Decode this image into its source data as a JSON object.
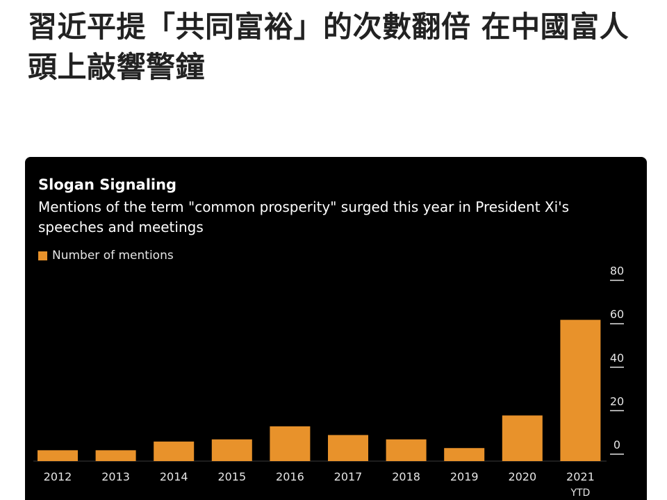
{
  "headline": "習近平提「共同富裕」的次數翻倍 在中國富人頭上敲響警鐘",
  "colors": {
    "page_background": "#ffffff",
    "card_background": "#000000",
    "bar": "#e8922b",
    "axis_text": "#e6e6e6"
  },
  "chart_data": {
    "type": "bar",
    "title": "Slogan Signaling",
    "subtitle": "Mentions of the term \"common prosperity\" surged this year in President Xi's speeches and meetings",
    "categories": [
      "2012",
      "2013",
      "2014",
      "2015",
      "2016",
      "2017",
      "2018",
      "2019",
      "2020",
      "2021"
    ],
    "category_sublabels": [
      "",
      "",
      "",
      "",
      "",
      "",
      "",
      "",
      "",
      "YTD"
    ],
    "series": [
      {
        "name": "Number of mentions",
        "values": [
          5,
          5,
          9,
          10,
          16,
          12,
          10,
          6,
          21,
          65
        ]
      }
    ],
    "yticks": [
      0,
      20,
      40,
      60,
      80
    ],
    "ylim": [
      0,
      85
    ],
    "y_axis_side": "right",
    "legend_position": "top-left",
    "grid": false
  }
}
